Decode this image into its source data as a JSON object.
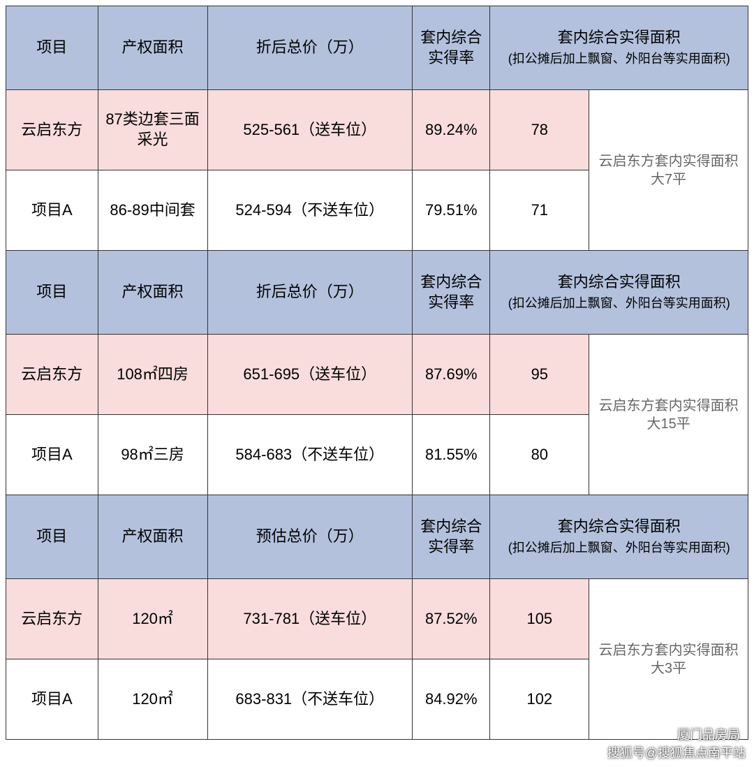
{
  "colors": {
    "header_bg": "#b3c1dd",
    "highlight_bg": "#f9dcdc",
    "white_bg": "#ffffff",
    "border": "#333333",
    "text": "#000000",
    "note_text": "#666666"
  },
  "column_headers": {
    "col1": "项目",
    "col2": "产权面积",
    "col3_a": "折后总价（万）",
    "col3_b": "预估总价（万）",
    "col4": "套内综合实得率",
    "col5_line1": "套内综合实得面积",
    "col5_line2": "(扣公摊后加上飘窗、外阳台等实用面积)"
  },
  "sections": [
    {
      "price_label_key": "col3_a",
      "rows": [
        {
          "proj": "云启东方",
          "area": "87类边套三面采光",
          "price": "525-561（送车位）",
          "rate": "89.24%",
          "actual": "78",
          "hl": true
        },
        {
          "proj": "项目A",
          "area": "86-89中间套",
          "price": "524-594（不送车位）",
          "rate": "79.51%",
          "actual": "71",
          "hl": false
        }
      ],
      "note": "云启东方套内实得面积大7平"
    },
    {
      "price_label_key": "col3_a",
      "rows": [
        {
          "proj": "云启东方",
          "area": "108㎡四房",
          "price": "651-695（送车位）",
          "rate": "87.69%",
          "actual": "95",
          "hl": true
        },
        {
          "proj": "项目A",
          "area": "98㎡三房",
          "price": "584-683（不送车位）",
          "rate": "81.55%",
          "actual": "80",
          "hl": false
        }
      ],
      "note": "云启东方套内实得面积大15平"
    },
    {
      "price_label_key": "col3_b",
      "rows": [
        {
          "proj": "云启东方",
          "area": "120㎡",
          "price": "731-781（送车位）",
          "rate": "87.52%",
          "actual": "105",
          "hl": true
        },
        {
          "proj": "项目A",
          "area": "120㎡",
          "price": "683-831（不送车位）",
          "rate": "84.92%",
          "actual": "102",
          "hl": false
        }
      ],
      "note": "云启东方套内实得面积大3平"
    }
  ],
  "row_heights": {
    "header": 120,
    "data": 115
  },
  "watermark_top": "厦门品房局",
  "watermark_bottom": "搜狐号@搜狐焦点南平站"
}
